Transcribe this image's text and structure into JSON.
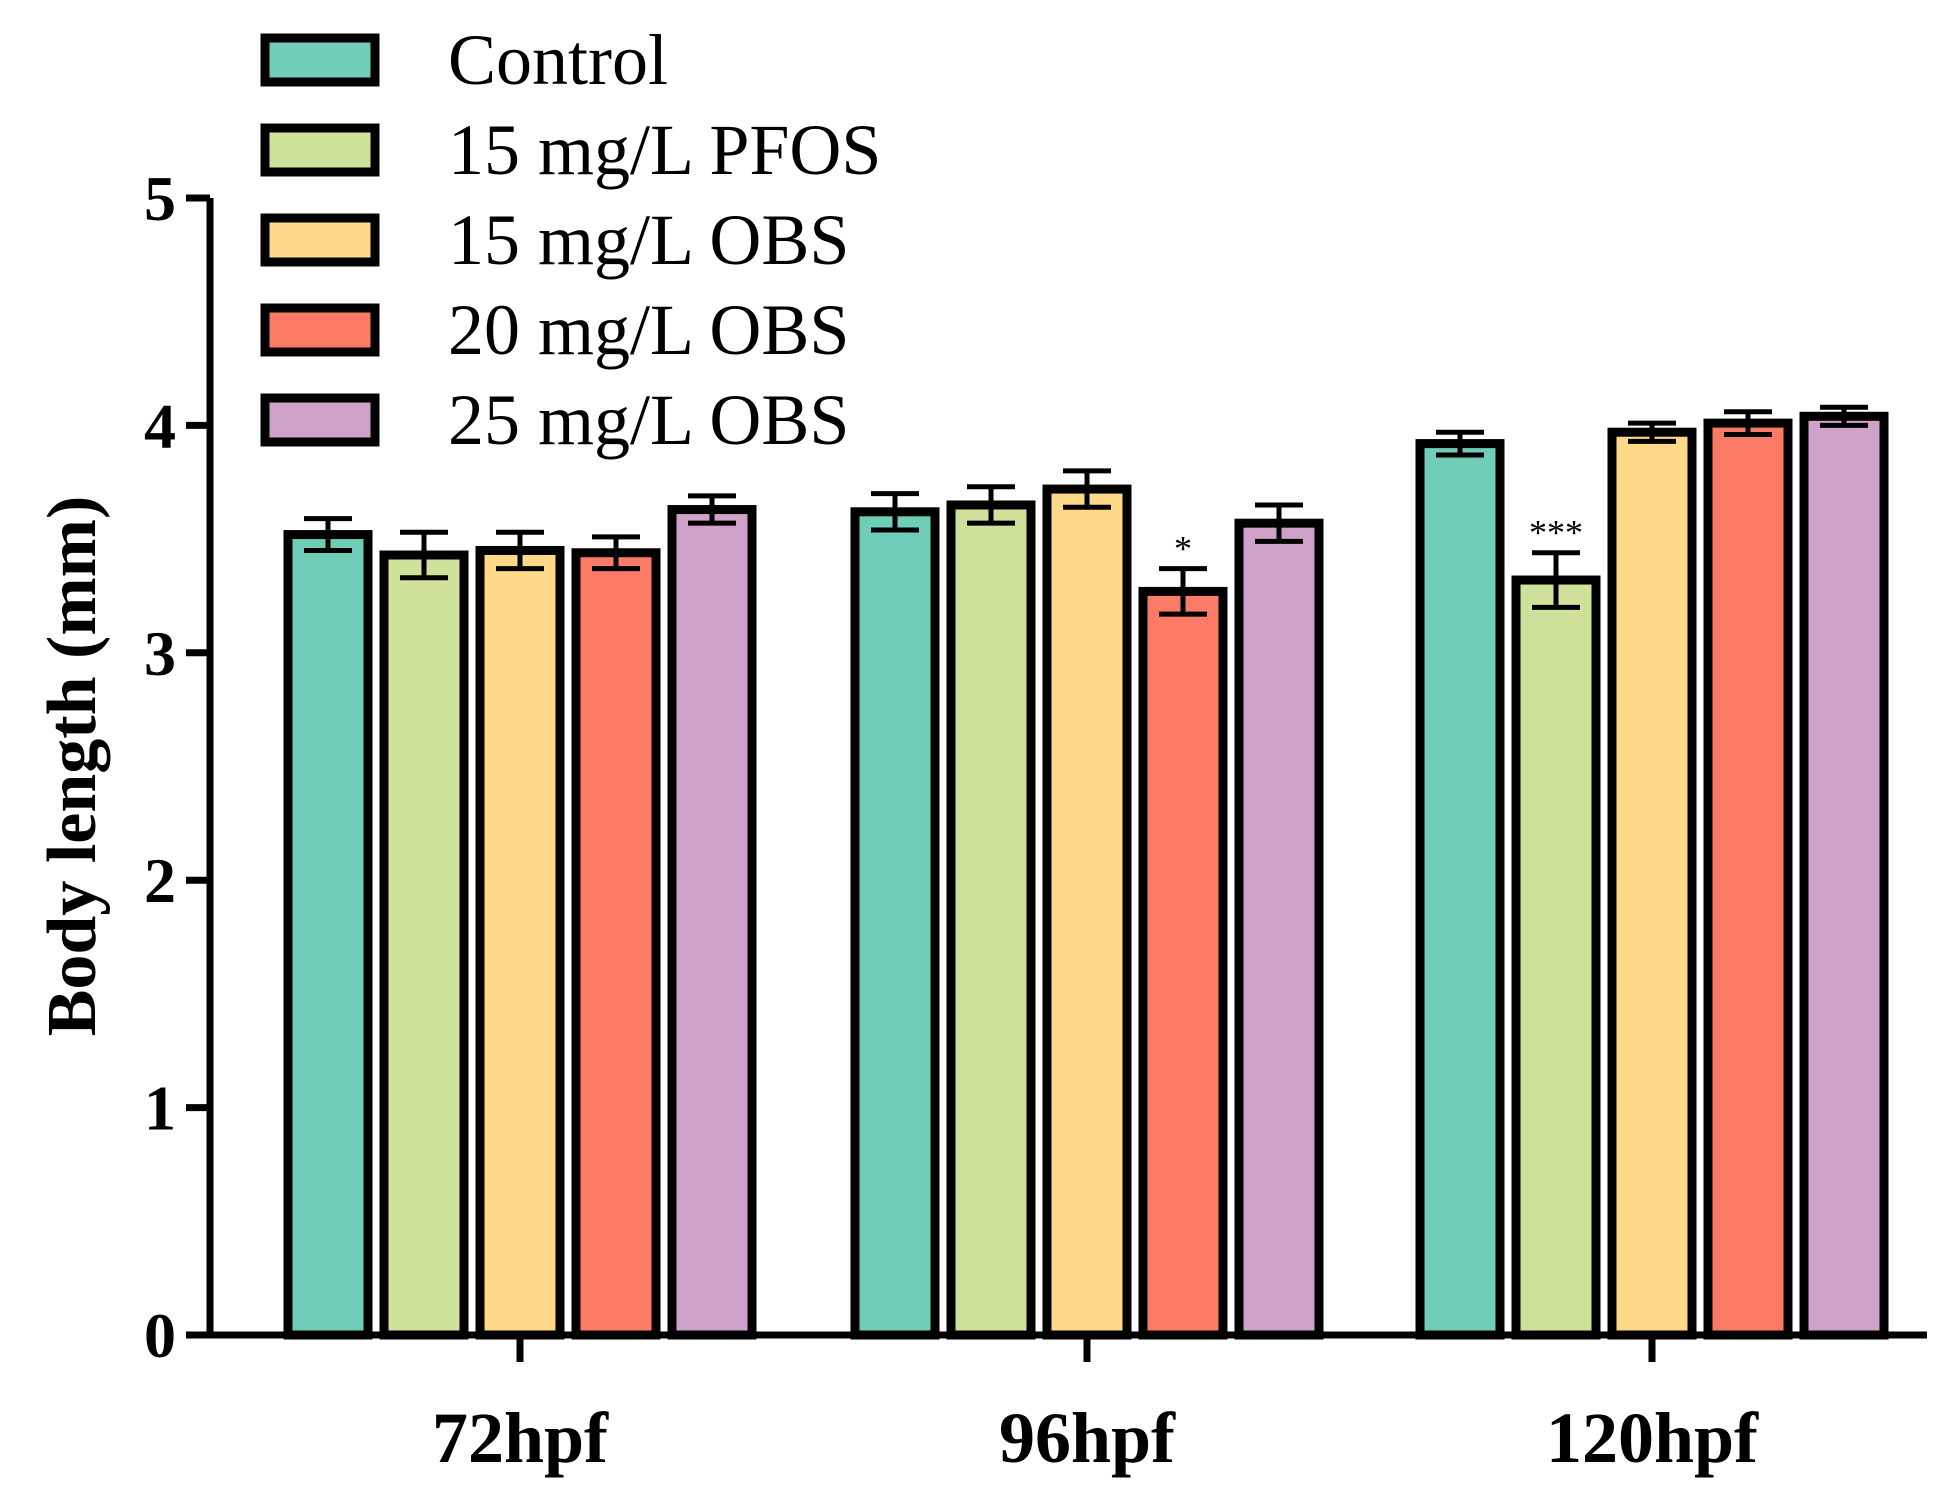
{
  "chart_data": {
    "type": "bar",
    "title": "",
    "xlabel": "",
    "ylabel": "Body length (mm)",
    "ylim": [
      0,
      5
    ],
    "yticks": [
      "0",
      "1",
      "2",
      "3",
      "4",
      "5"
    ],
    "categories": [
      "72hpf",
      "96hpf",
      "120hpf"
    ],
    "legend_position": "top-left",
    "series": [
      {
        "name": "Control",
        "color": "#6fcdb8",
        "values": [
          3.52,
          3.62,
          3.92
        ],
        "errors": [
          0.07,
          0.08,
          0.05
        ],
        "significance": [
          "",
          "",
          ""
        ]
      },
      {
        "name": "15 mg/L PFOS",
        "color": "#cfe29b",
        "values": [
          3.43,
          3.65,
          3.32
        ],
        "errors": [
          0.1,
          0.08,
          0.12
        ],
        "significance": [
          "",
          "",
          "***"
        ]
      },
      {
        "name": "15 mg/L OBS",
        "color": "#fdd888",
        "values": [
          3.45,
          3.72,
          3.97
        ],
        "errors": [
          0.08,
          0.08,
          0.04
        ],
        "significance": [
          "",
          "",
          ""
        ]
      },
      {
        "name": "20 mg/L OBS",
        "color": "#fb7b66",
        "values": [
          3.44,
          3.27,
          4.01
        ],
        "errors": [
          0.07,
          0.1,
          0.05
        ],
        "significance": [
          "",
          "*",
          ""
        ]
      },
      {
        "name": "25 mg/L OBS",
        "color": "#cea2c9",
        "values": [
          3.63,
          3.57,
          4.04
        ],
        "errors": [
          0.06,
          0.08,
          0.04
        ],
        "significance": [
          "",
          "",
          ""
        ]
      }
    ]
  }
}
